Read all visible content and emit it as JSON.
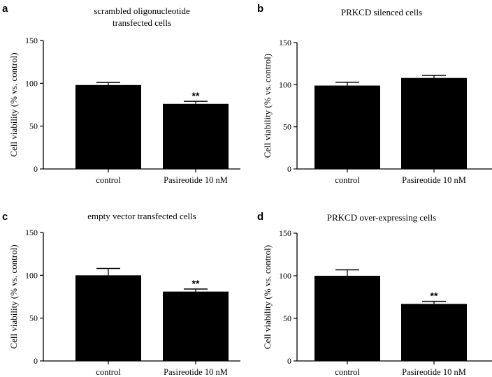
{
  "chart_data": [
    {
      "type": "bar",
      "panel": "a",
      "title": [
        "scrambled oligonucleotide",
        "transfected cells"
      ],
      "categories": [
        "control",
        "Pasireotide 10 nM"
      ],
      "values": [
        98,
        76
      ],
      "errors": [
        3,
        3
      ],
      "significance": [
        "",
        "**"
      ],
      "ylabel": "Cell viability (% vs. control)",
      "ylim": [
        0,
        150
      ],
      "yticks": [
        "0",
        "50",
        "100",
        "150"
      ],
      "color": "#000000"
    },
    {
      "type": "bar",
      "panel": "b",
      "title": [
        "PRKCD silenced cells"
      ],
      "categories": [
        "control",
        "Pasireotide 10 nM"
      ],
      "values": [
        99,
        108
      ],
      "errors": [
        4,
        3
      ],
      "significance": [
        "",
        ""
      ],
      "ylabel": "Cell viability (% vs. control)",
      "ylim": [
        0,
        150
      ],
      "yticks": [
        "0",
        "50",
        "100",
        "150"
      ],
      "color": "#000000"
    },
    {
      "type": "bar",
      "panel": "c",
      "title": [
        "empty vector transfected cells"
      ],
      "categories": [
        "control",
        "Pasireotide 10 nM"
      ],
      "values": [
        100,
        81
      ],
      "errors": [
        8,
        3
      ],
      "significance": [
        "",
        "**"
      ],
      "ylabel": "Cell viability (% vs. control)",
      "ylim": [
        0,
        150
      ],
      "yticks": [
        "0",
        "50",
        "100",
        "150"
      ],
      "color": "#000000"
    },
    {
      "type": "bar",
      "panel": "d",
      "title": [
        "PRKCD over-expressing cells"
      ],
      "categories": [
        "control",
        "Pasireotide 10 nM"
      ],
      "values": [
        100,
        67
      ],
      "errors": [
        7,
        3
      ],
      "significance": [
        "",
        "**"
      ],
      "ylabel": "Cell viability (% vs. control)",
      "ylim": [
        0,
        150
      ],
      "yticks": [
        "0",
        "50",
        "100",
        "150"
      ],
      "color": "#000000"
    }
  ]
}
